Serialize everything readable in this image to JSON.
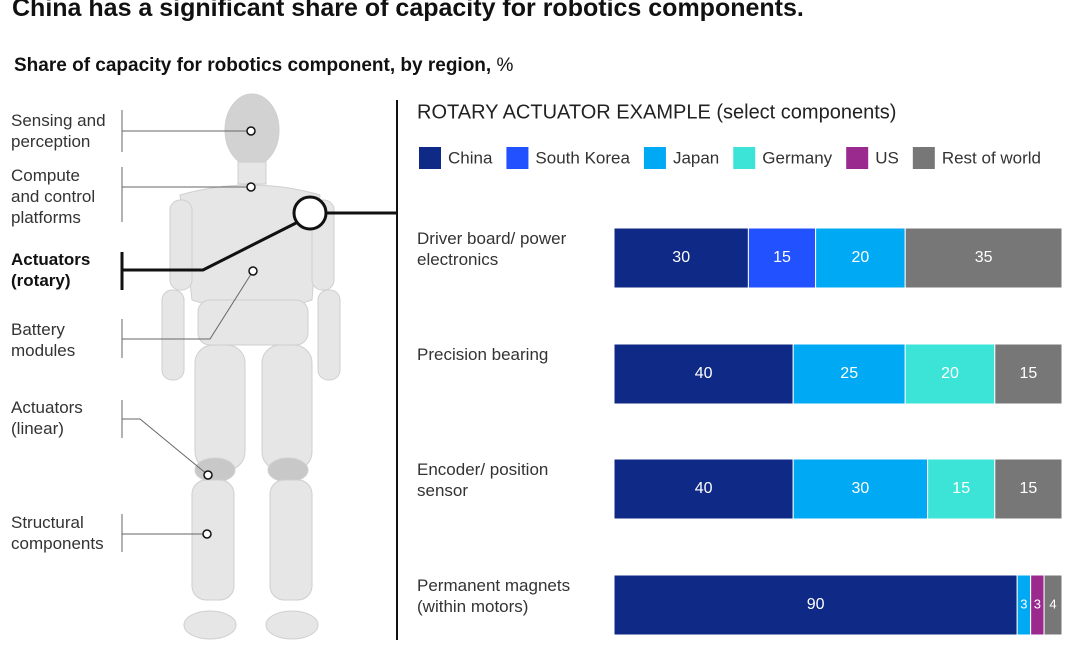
{
  "title": "China has a significant share of capacity for robotics components.",
  "subtitle": "Share of capacity for robotics component, by region,",
  "subtitle_unit": "%",
  "robot_labels": [
    "Sensing and perception",
    "Compute and control platforms",
    "Actuators (rotary)",
    "Battery modules",
    "Actuators (linear)",
    "Structural components"
  ],
  "chart_data": {
    "type": "bar",
    "orientation": "horizontal",
    "stacked": true,
    "title": "ROTARY ACTUATOR EXAMPLE (select components)",
    "categories": [
      "Driver board/ power electronics",
      "Precision bearing",
      "Encoder/ position sensor",
      "Permanent magnets (within motors)"
    ],
    "series": [
      {
        "name": "China",
        "color": "#0f2a86",
        "values": [
          30,
          40,
          40,
          90
        ]
      },
      {
        "name": "South Korea",
        "color": "#2251ff",
        "values": [
          15,
          null,
          null,
          null
        ]
      },
      {
        "name": "Japan",
        "color": "#00a9f4",
        "values": [
          20,
          25,
          30,
          3
        ]
      },
      {
        "name": "Germany",
        "color": "#3ce3d7",
        "values": [
          null,
          20,
          15,
          null
        ]
      },
      {
        "name": "US",
        "color": "#9b2a8f",
        "values": [
          null,
          null,
          null,
          3
        ]
      },
      {
        "name": "Rest of world",
        "color": "#777777",
        "values": [
          35,
          15,
          15,
          4
        ]
      }
    ],
    "xlim": [
      0,
      100
    ]
  }
}
